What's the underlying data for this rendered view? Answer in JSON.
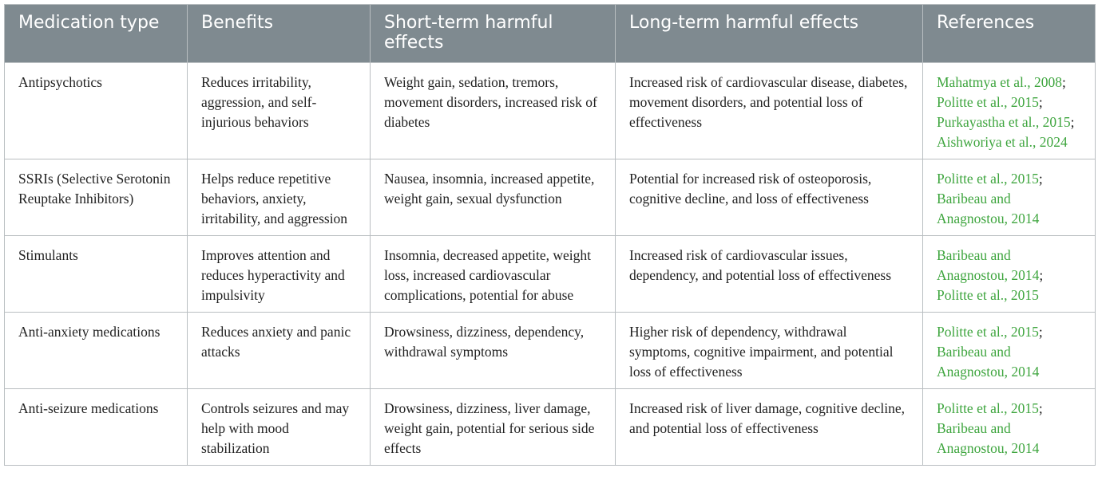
{
  "table": {
    "headers": [
      "Medication type",
      "Benefits",
      "Short-term harmful effects",
      "Long-term harmful effects",
      "References"
    ],
    "reference_separator": ";",
    "rows": [
      {
        "cells": [
          "Antipsychotics",
          "Reduces irritability, aggression, and self-injurious behaviors",
          "Weight gain, sedation, tremors, movement disorders, increased risk of diabetes",
          "Increased risk of cardiovascular disease, diabetes, movement disorders, and potential loss of effectiveness"
        ],
        "references": [
          "Mahatmya et al., 2008",
          "Politte et al., 2015",
          "Purkayastha et al., 2015",
          "Aishworiya et al., 2024"
        ]
      },
      {
        "cells": [
          "SSRIs (Selective Serotonin Reuptake Inhibitors)",
          "Helps reduce repetitive behaviors, anxiety, irritability, and aggression",
          "Nausea, insomnia, increased appetite, weight gain, sexual dysfunction",
          "Potential for increased risk of osteoporosis, cognitive decline, and loss of effectiveness"
        ],
        "references": [
          "Politte et al., 2015",
          "Baribeau and Anagnostou, 2014"
        ]
      },
      {
        "cells": [
          "Stimulants",
          "Improves attention and reduces hyperactivity and impulsivity",
          "Insomnia, decreased appetite, weight loss, increased cardiovascular complications, potential for abuse",
          "Increased risk of cardiovascular issues, dependency, and potential loss of effectiveness"
        ],
        "references": [
          "Baribeau and Anagnostou, 2014",
          "Politte et al., 2015"
        ]
      },
      {
        "cells": [
          "Anti-anxiety medications",
          "Reduces anxiety and panic attacks",
          "Drowsiness, dizziness, dependency, withdrawal symptoms",
          "Higher risk of dependency, withdrawal symptoms, cognitive impairment, and potential loss of effectiveness"
        ],
        "references": [
          "Politte et al., 2015",
          "Baribeau and Anagnostou, 2014"
        ]
      },
      {
        "cells": [
          "Anti-seizure medications",
          "Controls seizures and may help with mood stabilization",
          "Drowsiness, dizziness, liver damage, weight gain, potential for serious side effects",
          "Increased risk of liver damage, cognitive decline, and potential loss of effectiveness"
        ],
        "references": [
          "Politte et al., 2015",
          "Baribeau and Anagnostou, 2014"
        ]
      }
    ]
  }
}
